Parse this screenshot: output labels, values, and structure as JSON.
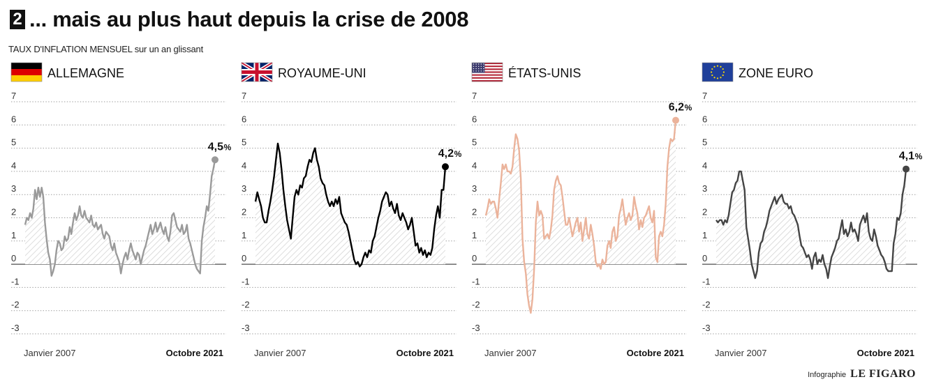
{
  "header": {
    "number": "2",
    "title": "... mais au plus haut depuis la crise de 2008",
    "subtitle": "TAUX D'INFLATION MENSUEL sur un an glissant"
  },
  "credit": {
    "label": "Infographie",
    "brand": "LE FIGARO"
  },
  "chart_data": [
    {
      "type": "line",
      "title": "ALLEMAGNE",
      "flag": "germany-flag-icon",
      "color": "#9a9a9a",
      "ylim": [
        -3,
        7
      ],
      "yticks": [
        7,
        6,
        5,
        4,
        3,
        2,
        1,
        0,
        -1,
        -2,
        -3
      ],
      "x_start_label": "Janvier 2007",
      "x_end_label": "Octobre 2021",
      "end_label": "4,5",
      "unit": "%",
      "series": [
        {
          "values": [
            1.7,
            2.0,
            1.9,
            2.2,
            2.0,
            2.4,
            3.2,
            2.8,
            3.3,
            2.9,
            3.3,
            2.9,
            1.8,
            1.1,
            0.5,
            0.2,
            -0.5,
            -0.3,
            0.0,
            0.6,
            1.0,
            0.9,
            0.6,
            0.7,
            1.2,
            1.0,
            1.1,
            1.6,
            1.3,
            1.8,
            2.2,
            1.9,
            2.1,
            2.5,
            2.1,
            2.0,
            2.3,
            2.0,
            1.9,
            1.8,
            2.1,
            1.7,
            1.6,
            1.8,
            1.5,
            1.6,
            1.7,
            1.3,
            1.1,
            1.4,
            1.3,
            1.2,
            0.8,
            0.6,
            0.9,
            0.5,
            0.3,
            0.1,
            -0.4,
            0.0,
            0.3,
            0.5,
            0.2,
            0.6,
            0.9,
            0.6,
            0.4,
            0.2,
            0.5,
            0.4,
            0.0,
            0.3,
            0.6,
            0.8,
            1.1,
            1.4,
            1.7,
            1.3,
            1.5,
            1.8,
            1.4,
            1.6,
            1.8,
            1.5,
            1.3,
            1.6,
            1.2,
            1.0,
            1.4,
            2.1,
            2.2,
            1.9,
            1.6,
            1.5,
            1.4,
            1.7,
            1.3,
            1.4,
            1.7,
            1.1,
            0.9,
            0.6,
            0.3,
            0.0,
            -0.2,
            -0.3,
            -0.4,
            1.0,
            1.6,
            2.0,
            2.5,
            2.3,
            3.0,
            3.8,
            4.1,
            4.5
          ]
        }
      ]
    },
    {
      "type": "line",
      "title": "ROYAUME-UNI",
      "flag": "uk-flag-icon",
      "color": "#000000",
      "ylim": [
        -3,
        7
      ],
      "yticks": [
        7,
        6,
        5,
        4,
        3,
        2,
        1,
        0,
        -1,
        -2,
        -3
      ],
      "x_start_label": "Janvier 2007",
      "x_end_label": "Octobre 2021",
      "end_label": "4,2",
      "unit": "%",
      "series": [
        {
          "values": [
            2.7,
            3.1,
            2.8,
            2.5,
            2.0,
            1.8,
            1.8,
            2.3,
            2.7,
            3.2,
            3.8,
            4.5,
            5.2,
            4.8,
            4.1,
            3.2,
            2.5,
            1.9,
            1.5,
            1.1,
            2.0,
            2.9,
            3.2,
            3.0,
            3.4,
            3.3,
            3.7,
            3.8,
            4.2,
            4.5,
            4.4,
            4.8,
            5.0,
            4.5,
            4.2,
            3.7,
            3.5,
            3.4,
            3.0,
            2.7,
            2.5,
            2.7,
            2.5,
            2.8,
            2.6,
            2.9,
            2.2,
            2.0,
            1.8,
            1.7,
            1.4,
            1.0,
            0.6,
            0.2,
            0.0,
            0.1,
            -0.1,
            0.0,
            0.3,
            0.5,
            0.3,
            0.6,
            0.5,
            1.0,
            1.2,
            1.6,
            2.0,
            2.3,
            2.7,
            2.9,
            3.1,
            3.0,
            2.5,
            2.7,
            2.4,
            2.2,
            2.6,
            2.1,
            1.9,
            2.2,
            2.0,
            1.8,
            1.5,
            1.7,
            2.0,
            1.4,
            0.8,
            0.9,
            0.5,
            0.7,
            0.4,
            0.6,
            0.3,
            0.5,
            0.4,
            0.7,
            1.5,
            2.1,
            2.5,
            2.0,
            3.2,
            3.2,
            4.2
          ]
        }
      ]
    },
    {
      "type": "line",
      "title": "ÉTATS-UNIS",
      "flag": "us-flag-icon",
      "color": "#ebb39b",
      "ylim": [
        -3,
        7
      ],
      "yticks": [
        7,
        6,
        5,
        4,
        3,
        2,
        1,
        0,
        -1,
        -2,
        -3
      ],
      "x_start_label": "Janvier 2007",
      "x_end_label": "Octobre 2021",
      "end_label": "6,2",
      "unit": "%",
      "series": [
        {
          "values": [
            2.1,
            2.4,
            2.8,
            2.6,
            2.7,
            2.7,
            2.4,
            2.0,
            2.8,
            3.5,
            4.3,
            4.1,
            4.3,
            4.0,
            4.0,
            3.9,
            4.2,
            5.0,
            5.6,
            5.4,
            4.9,
            3.7,
            1.1,
            0.1,
            -0.4,
            -1.3,
            -1.8,
            -2.1,
            -1.5,
            -0.2,
            1.8,
            2.7,
            2.1,
            2.3,
            2.1,
            1.1,
            1.2,
            1.3,
            1.1,
            1.5,
            2.1,
            3.2,
            3.6,
            3.8,
            3.5,
            3.4,
            2.9,
            2.3,
            1.7,
            1.7,
            2.0,
            1.6,
            1.2,
            1.5,
            1.8,
            2.0,
            1.4,
            1.8,
            1.0,
            1.5,
            2.0,
            1.3,
            1.1,
            1.7,
            1.3,
            0.8,
            0.1,
            -0.1,
            0.0,
            -0.2,
            0.2,
            0.0,
            0.1,
            0.8,
            1.0,
            0.7,
            1.4,
            1.6,
            1.0,
            1.2,
            2.1,
            2.4,
            2.8,
            2.2,
            1.7,
            2.0,
            2.2,
            1.9,
            2.1,
            2.9,
            2.5,
            2.2,
            1.5,
            1.9,
            1.6,
            2.0,
            2.1,
            2.3,
            2.5,
            2.0,
            1.8,
            2.3,
            0.3,
            0.1,
            1.2,
            1.4,
            1.2,
            1.7,
            2.6,
            4.2,
            5.0,
            5.4,
            5.3,
            5.4,
            6.2
          ]
        }
      ]
    },
    {
      "type": "line",
      "title": "ZONE EURO",
      "flag": "eu-flag-icon",
      "color": "#444444",
      "ylim": [
        -3,
        7
      ],
      "yticks": [
        7,
        6,
        5,
        4,
        3,
        2,
        1,
        0,
        -1,
        -2,
        -3
      ],
      "x_start_label": "Janvier 2007",
      "x_end_label": "Octobre 2021",
      "end_label": "4,1",
      "unit": "%",
      "series": [
        {
          "values": [
            1.9,
            1.8,
            1.9,
            1.9,
            1.7,
            1.9,
            1.8,
            2.1,
            2.6,
            3.1,
            3.2,
            3.5,
            3.6,
            4.0,
            4.0,
            3.6,
            3.2,
            1.6,
            1.1,
            0.6,
            0.0,
            -0.3,
            -0.6,
            -0.3,
            0.5,
            0.9,
            1.0,
            1.4,
            1.6,
            1.9,
            2.3,
            2.5,
            2.7,
            2.9,
            2.6,
            2.8,
            2.9,
            3.0,
            2.7,
            2.6,
            2.6,
            2.4,
            2.5,
            2.2,
            2.1,
            1.9,
            1.7,
            1.2,
            0.8,
            0.7,
            0.5,
            0.3,
            0.4,
            0.2,
            -0.2,
            0.3,
            0.5,
            0.0,
            0.2,
            0.1,
            0.4,
            0.0,
            -0.2,
            -0.6,
            -0.1,
            0.3,
            0.5,
            0.7,
            1.0,
            1.1,
            1.5,
            1.9,
            1.3,
            1.5,
            1.2,
            1.4,
            1.8,
            1.4,
            1.5,
            1.3,
            1.0,
            1.7,
            1.9,
            2.1,
            1.8,
            2.2,
            1.4,
            1.1,
            1.0,
            1.5,
            1.2,
            0.8,
            0.6,
            0.4,
            0.3,
            0.1,
            -0.2,
            -0.3,
            -0.3,
            -0.3,
            0.9,
            1.3,
            2.0,
            1.9,
            2.2,
            3.0,
            3.4,
            4.1
          ]
        }
      ]
    }
  ]
}
